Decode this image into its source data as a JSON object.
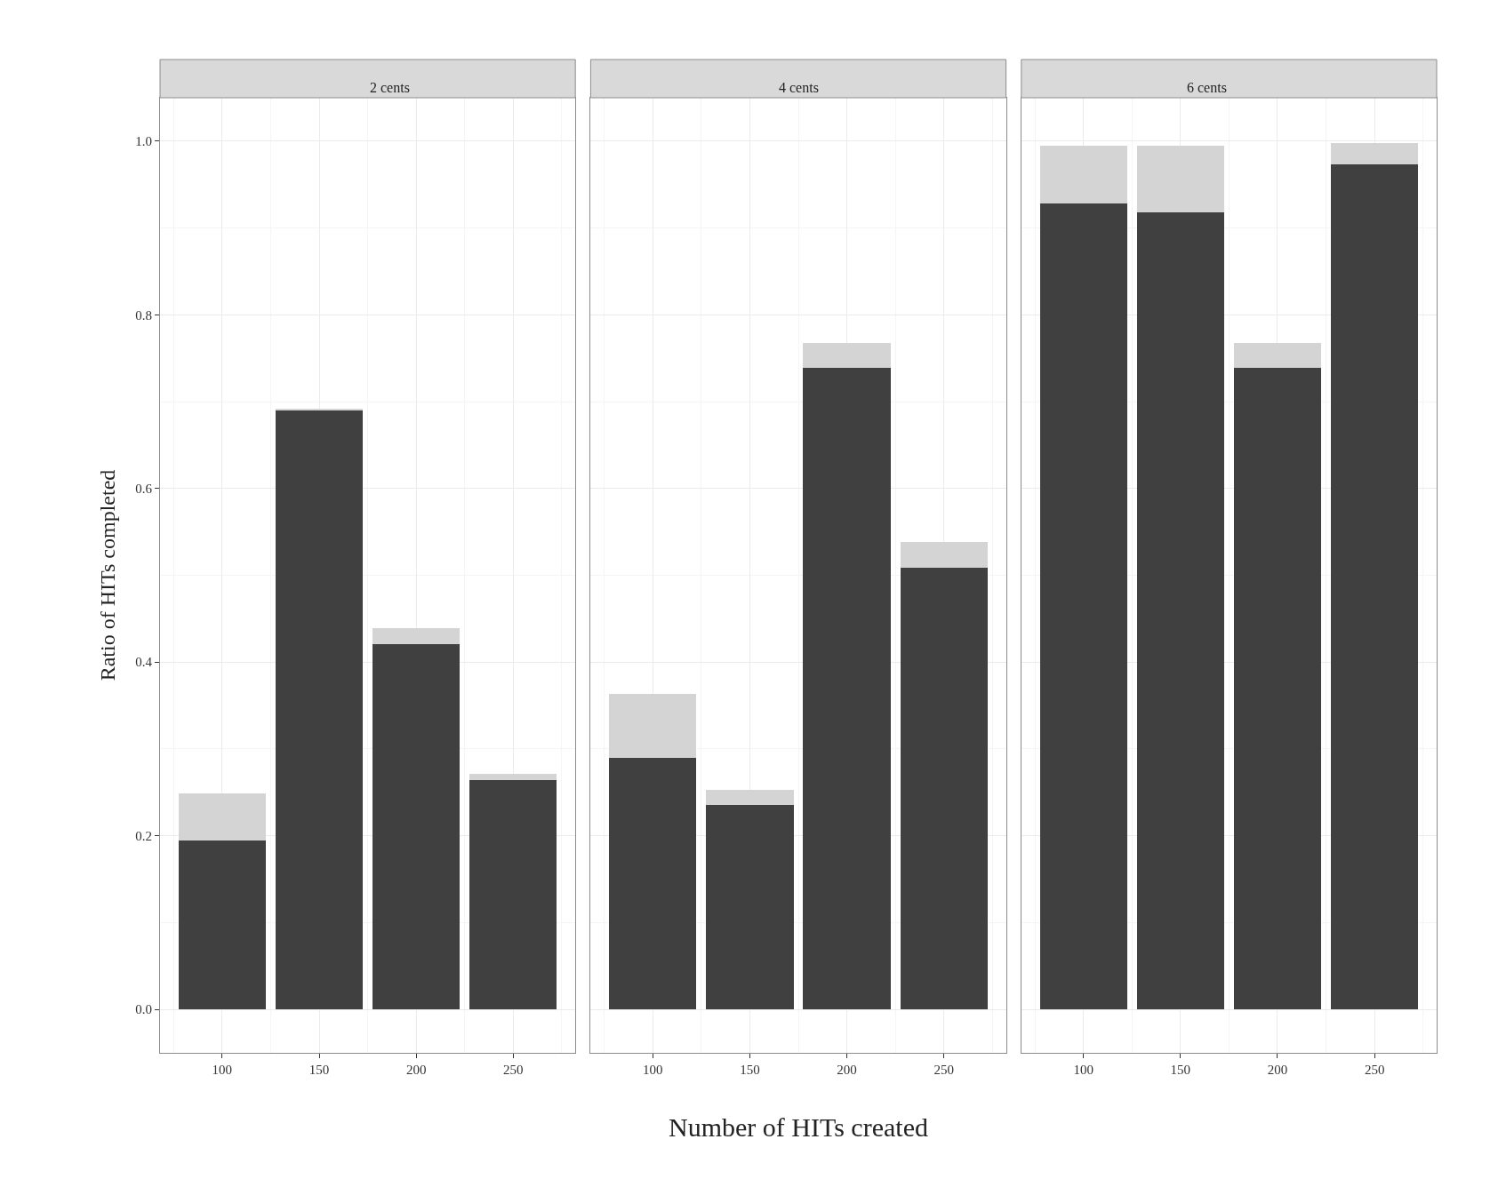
{
  "chart_data": [
    {
      "type": "bar",
      "title": "2 cents",
      "ylabel": "Ratio of HITs completed",
      "stacked": true,
      "x": [
        100,
        150,
        200,
        250
      ],
      "series": [
        {
          "color": "#404040",
          "values": [
            0.195,
            0.69,
            0.421,
            0.264
          ]
        },
        {
          "color": "#d4d4d4",
          "values": [
            0.054,
            0.001,
            0.018,
            0.007
          ]
        }
      ],
      "xlim": [
        68,
        282
      ],
      "ylim": [
        -0.05,
        1.05
      ],
      "xticks": [
        100,
        150,
        200,
        250
      ],
      "yticks": [
        {
          "value": 0,
          "label": "0.0"
        },
        {
          "value": 0.2,
          "label": "0.2"
        },
        {
          "value": 0.4,
          "label": "0.4"
        },
        {
          "value": 0.6,
          "label": "0.6"
        },
        {
          "value": 0.8,
          "label": "0.8"
        },
        {
          "value": 1,
          "label": "1.0"
        }
      ],
      "grid": true
    },
    {
      "type": "bar",
      "title": "4 cents",
      "xlabel": "Number of HITs created",
      "stacked": true,
      "x": [
        100,
        150,
        200,
        250
      ],
      "series": [
        {
          "color": "#404040",
          "values": [
            0.29,
            0.235,
            0.739,
            0.509
          ]
        },
        {
          "color": "#d4d4d4",
          "values": [
            0.073,
            0.018,
            0.029,
            0.029
          ]
        }
      ],
      "xlim": [
        68,
        282
      ],
      "ylim": [
        -0.05,
        1.05
      ],
      "xticks": [
        100,
        150,
        200,
        250
      ],
      "tick_labels": "x",
      "yticks": [
        {
          "value": 0,
          "label": null
        },
        {
          "value": 0.2,
          "label": null
        },
        {
          "value": 0.4,
          "label": null
        },
        {
          "value": 0.6,
          "label": null
        },
        {
          "value": 0.8,
          "label": null
        },
        {
          "value": 1,
          "label": null
        }
      ],
      "grid": true
    },
    {
      "type": "bar",
      "title": "6 cents",
      "stacked": true,
      "x": [
        100,
        150,
        200,
        250
      ],
      "series": [
        {
          "color": "#404040",
          "values": [
            0.928,
            0.918,
            0.739,
            0.973
          ]
        },
        {
          "color": "#d4d4d4",
          "values": [
            0.067,
            0.077,
            0.029,
            0.025
          ]
        }
      ],
      "xlim": [
        68,
        282
      ],
      "ylim": [
        -0.05,
        1.05
      ],
      "xticks": [
        100,
        150,
        200,
        250
      ],
      "tick_labels": "x",
      "yticks": [
        {
          "value": 0,
          "label": null
        },
        {
          "value": 0.2,
          "label": null
        },
        {
          "value": 0.4,
          "label": null
        },
        {
          "value": 0.6,
          "label": null
        },
        {
          "value": 0.8,
          "label": null
        },
        {
          "value": 1,
          "label": null
        }
      ],
      "grid": true
    }
  ]
}
